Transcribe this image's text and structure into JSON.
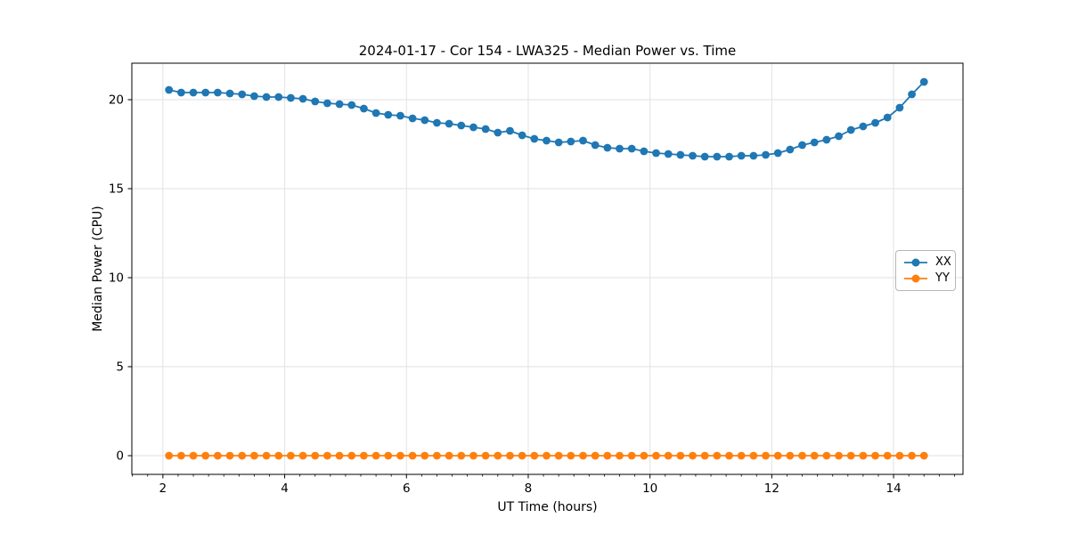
{
  "chart_data": {
    "type": "line",
    "title": "2024-01-17 - Cor 154 - LWA325 - Median Power vs. Time",
    "xlabel": "UT Time (hours)",
    "ylabel": "Median Power (CPU)",
    "x": [
      2.1,
      2.3,
      2.5,
      2.7,
      2.9,
      3.1,
      3.3,
      3.5,
      3.7,
      3.9,
      4.1,
      4.3,
      4.5,
      4.7,
      4.9,
      5.1,
      5.3,
      5.5,
      5.7,
      5.9,
      6.1,
      6.3,
      6.5,
      6.7,
      6.9,
      7.1,
      7.3,
      7.5,
      7.7,
      7.9,
      8.1,
      8.3,
      8.5,
      8.7,
      8.9,
      9.1,
      9.3,
      9.5,
      9.7,
      9.9,
      10.1,
      10.3,
      10.5,
      10.7,
      10.9,
      11.1,
      11.3,
      11.5,
      11.7,
      11.9,
      12.1,
      12.3,
      12.5,
      12.7,
      12.9,
      13.1,
      13.3,
      13.5,
      13.7,
      13.9,
      14.1,
      14.3,
      14.5
    ],
    "series": [
      {
        "name": "XX",
        "color": "#1f77b4",
        "values": [
          20.55,
          20.4,
          20.4,
          20.4,
          20.4,
          20.35,
          20.3,
          20.2,
          20.15,
          20.15,
          20.1,
          20.05,
          19.9,
          19.8,
          19.75,
          19.7,
          19.5,
          19.25,
          19.15,
          19.1,
          18.95,
          18.85,
          18.7,
          18.65,
          18.55,
          18.45,
          18.35,
          18.15,
          18.25,
          18.0,
          17.8,
          17.7,
          17.6,
          17.65,
          17.7,
          17.45,
          17.3,
          17.25,
          17.25,
          17.1,
          17.0,
          16.95,
          16.9,
          16.85,
          16.8,
          16.8,
          16.8,
          16.85,
          16.85,
          16.9,
          17.0,
          17.2,
          17.45,
          17.6,
          17.75,
          17.95,
          18.3,
          18.5,
          18.7,
          19.0,
          19.55,
          20.3,
          21.0
        ]
      },
      {
        "name": "YY",
        "color": "#ff7f0e",
        "values": [
          0,
          0,
          0,
          0,
          0,
          0,
          0,
          0,
          0,
          0,
          0,
          0,
          0,
          0,
          0,
          0,
          0,
          0,
          0,
          0,
          0,
          0,
          0,
          0,
          0,
          0,
          0,
          0,
          0,
          0,
          0,
          0,
          0,
          0,
          0,
          0,
          0,
          0,
          0,
          0,
          0,
          0,
          0,
          0,
          0,
          0,
          0,
          0,
          0,
          0,
          0,
          0,
          0,
          0,
          0,
          0,
          0,
          0,
          0,
          0,
          0,
          0,
          0
        ]
      }
    ],
    "xlim": [
      1.49,
      15.14
    ],
    "ylim": [
      -1.05,
      22.05
    ],
    "xticks": [
      2,
      4,
      6,
      8,
      10,
      12,
      14
    ],
    "yticks": [
      0,
      5,
      10,
      15,
      20
    ],
    "x_minor_tick_step": 0.25,
    "grid": true,
    "grid_color": "#e2e2e2",
    "axes_color": "#000000",
    "background": "#ffffff",
    "legend_position": "center right",
    "marker": "o"
  }
}
